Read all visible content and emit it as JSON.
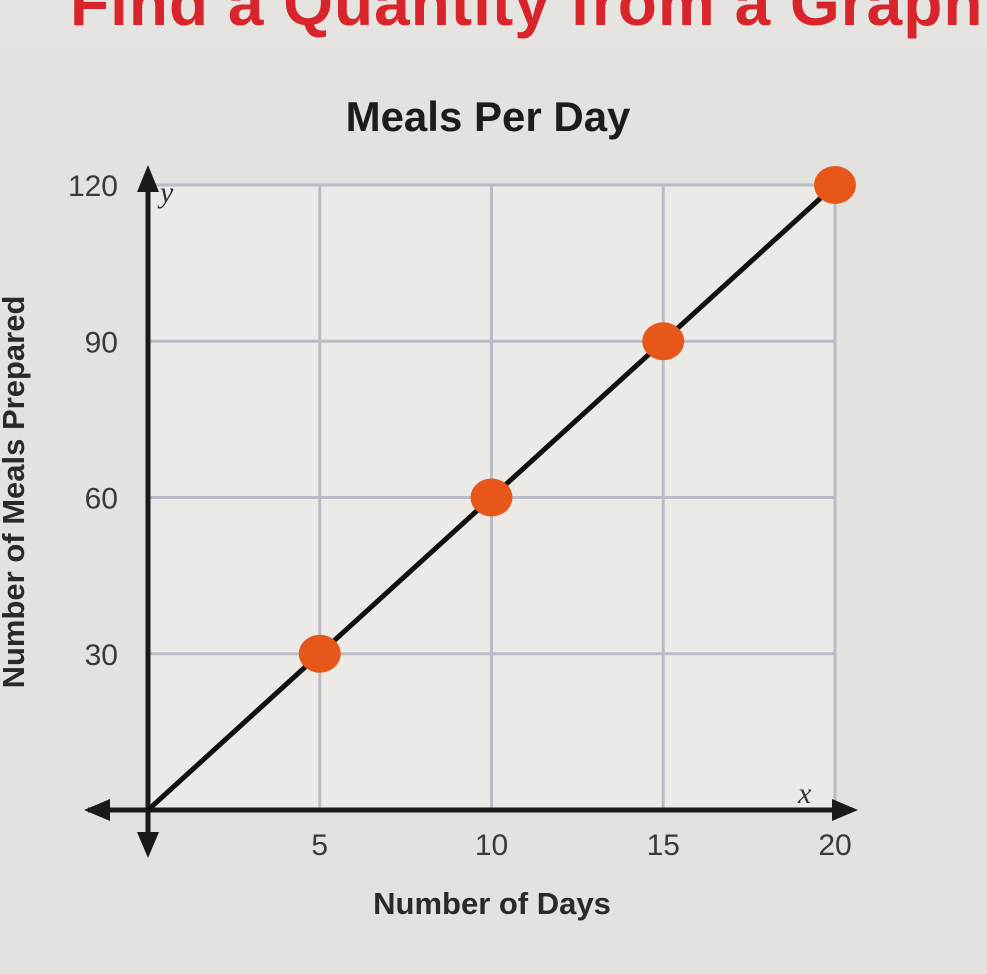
{
  "header": {
    "cut_title": "Find a Quantity from a Graph"
  },
  "chart_data": {
    "type": "line",
    "title": "Meals Per Day",
    "xlabel": "Number of Days",
    "ylabel": "Number of Meals Prepared",
    "x_var": "x",
    "y_var": "y",
    "xlim": [
      0,
      20
    ],
    "ylim": [
      0,
      120
    ],
    "x_ticks": [
      5,
      10,
      15,
      20
    ],
    "y_ticks": [
      30,
      60,
      90,
      120
    ],
    "grid": true,
    "line": {
      "x": [
        0,
        20
      ],
      "y": [
        0,
        120
      ]
    },
    "points": [
      {
        "x": 5,
        "y": 30
      },
      {
        "x": 10,
        "y": 60
      },
      {
        "x": 15,
        "y": 90
      },
      {
        "x": 20,
        "y": 120
      }
    ],
    "colors": {
      "point": "#e8571a",
      "line": "#111111",
      "grid": "#b9bcc4",
      "plot_bg": "#eceae7"
    }
  }
}
